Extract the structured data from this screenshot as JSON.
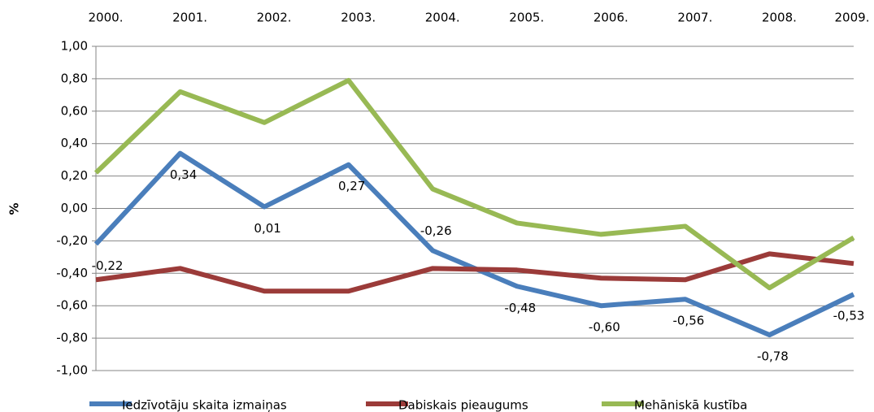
{
  "chart_data": {
    "type": "line",
    "y_label": "%",
    "categories": [
      "2000.",
      "2001.",
      "2002.",
      "2003.",
      "2004.",
      "2005.",
      "2006.",
      "2007.",
      "2008.",
      "2009."
    ],
    "series": [
      {
        "name": "Iedzīvotāju skaita izmaiņas",
        "color": "#4a7ebb",
        "values": [
          -0.22,
          0.34,
          0.01,
          0.27,
          -0.26,
          -0.48,
          -0.6,
          -0.56,
          -0.78,
          -0.53
        ],
        "value_labels": [
          "-0,22",
          "0,34",
          "0,01",
          "0,27",
          "-0,26",
          "-0,48",
          "-0,60",
          "-0,56",
          "-0,78",
          "-0,53"
        ]
      },
      {
        "name": "Dabiskais pieaugums",
        "color": "#9b3b39",
        "values": [
          -0.44,
          -0.37,
          -0.51,
          -0.51,
          -0.37,
          -0.38,
          -0.43,
          -0.44,
          -0.28,
          -0.34
        ]
      },
      {
        "name": "Mehāniskā kustība",
        "color": "#98b954",
        "values": [
          0.22,
          0.72,
          0.53,
          0.79,
          0.12,
          -0.09,
          -0.16,
          -0.11,
          -0.49,
          -0.18
        ]
      }
    ],
    "ylim": [
      -1,
      1
    ],
    "yticks": [
      {
        "value": -1,
        "label": "-1,00"
      },
      {
        "value": -0.8,
        "label": "-0,80"
      },
      {
        "value": -0.6,
        "label": "-0,60"
      },
      {
        "value": -0.4,
        "label": "-0,40"
      },
      {
        "value": -0.2,
        "label": "-0,20"
      },
      {
        "value": 0,
        "label": "0,00"
      },
      {
        "value": 0.2,
        "label": "0,20"
      },
      {
        "value": 0.4,
        "label": "0,40"
      },
      {
        "value": 0.6,
        "label": "0,60"
      },
      {
        "value": 0.8,
        "label": "0,80"
      },
      {
        "value": 1,
        "label": "1,00"
      }
    ],
    "grid": true
  }
}
